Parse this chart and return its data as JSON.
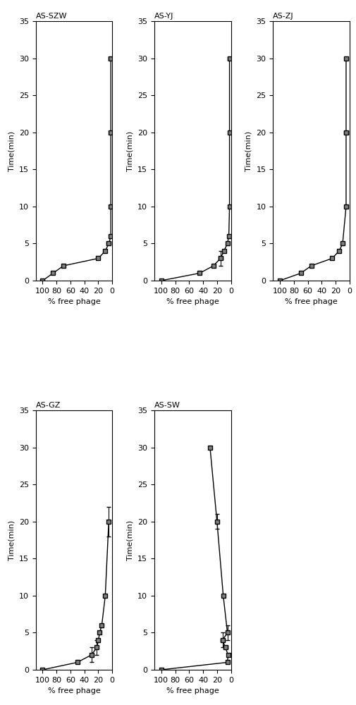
{
  "panels": [
    {
      "title": "AS-SZW",
      "x": [
        0,
        1,
        2,
        3,
        4,
        5,
        6,
        10,
        20,
        30
      ],
      "y": [
        100,
        85,
        70,
        20,
        10,
        5,
        2,
        2,
        2,
        2
      ],
      "yerr": [
        0,
        0,
        0,
        0,
        0,
        3,
        2,
        0,
        0,
        3
      ],
      "xerr": [
        0,
        0,
        0,
        0,
        0,
        0,
        0,
        0,
        0,
        0
      ],
      "xlim": [
        0,
        35
      ],
      "ylim": [
        0,
        110
      ],
      "yticks": [
        0,
        20,
        40,
        60,
        80,
        100
      ],
      "xticks": [
        0,
        5,
        10,
        15,
        20,
        25,
        30,
        35
      ],
      "smooth": true,
      "has_curve": true
    },
    {
      "title": "AS-YJ",
      "x": [
        0,
        1,
        2,
        3,
        4,
        5,
        6,
        10,
        20,
        30
      ],
      "y": [
        100,
        45,
        25,
        15,
        10,
        5,
        3,
        2,
        2,
        2
      ],
      "yerr": [
        0,
        0,
        0,
        3,
        2,
        2,
        1,
        0,
        0,
        3
      ],
      "xerr": [
        0,
        0,
        0,
        1,
        0,
        0,
        0,
        0,
        0,
        0
      ],
      "xlim": [
        0,
        35
      ],
      "ylim": [
        0,
        110
      ],
      "yticks": [
        0,
        20,
        40,
        60,
        80,
        100
      ],
      "xticks": [
        0,
        5,
        10,
        15,
        20,
        25,
        30,
        35
      ],
      "smooth": true,
      "has_curve": true
    },
    {
      "title": "AS-ZJ",
      "x": [
        0,
        1,
        2,
        3,
        4,
        5,
        10,
        20,
        30
      ],
      "y": [
        100,
        70,
        55,
        25,
        15,
        10,
        5,
        5,
        5
      ],
      "yerr": [
        0,
        0,
        0,
        0,
        0,
        0,
        0,
        3,
        2
      ],
      "xerr": [
        0,
        0,
        0,
        0,
        0,
        0,
        0,
        0,
        0
      ],
      "xlim": [
        0,
        35
      ],
      "ylim": [
        0,
        110
      ],
      "yticks": [
        0,
        20,
        40,
        60,
        80,
        100
      ],
      "xticks": [
        0,
        5,
        10,
        15,
        20,
        25,
        30,
        35
      ],
      "smooth": true,
      "has_curve": true
    },
    {
      "title": "AS-GZ",
      "x": [
        0,
        1,
        2,
        3,
        4,
        5,
        6,
        10,
        20
      ],
      "y": [
        100,
        50,
        30,
        22,
        20,
        18,
        15,
        10,
        5
      ],
      "yerr": [
        0,
        0,
        2,
        2,
        2,
        1,
        0,
        2,
        2
      ],
      "xerr": [
        0,
        0,
        1,
        1,
        0,
        0,
        0,
        0,
        2
      ],
      "xlim": [
        0,
        35
      ],
      "ylim": [
        0,
        110
      ],
      "yticks": [
        0,
        20,
        40,
        60,
        80,
        100
      ],
      "xticks": [
        0,
        5,
        10,
        15,
        20,
        25,
        30,
        35
      ],
      "smooth": true,
      "has_curve": true
    },
    {
      "title": "AS-SW",
      "x": [
        0,
        1,
        2,
        3,
        4,
        5,
        10,
        20,
        30
      ],
      "y": [
        100,
        5,
        4,
        8,
        12,
        5,
        11,
        20,
        30
      ],
      "yerr": [
        0,
        2,
        1,
        3,
        3,
        2,
        1,
        2,
        2
      ],
      "xerr": [
        0,
        0,
        0,
        0,
        1,
        1,
        0,
        1,
        0
      ],
      "xlim": [
        0,
        35
      ],
      "ylim": [
        0,
        110
      ],
      "yticks": [
        0,
        20,
        40,
        60,
        80,
        100
      ],
      "xticks": [
        0,
        5,
        10,
        15,
        20,
        25,
        30,
        35
      ],
      "smooth": false,
      "has_curve": false
    }
  ],
  "ylabel": "% free phage",
  "xlabel": "Time(min)",
  "marker": "s",
  "markersize": 4,
  "linecolor": "black",
  "markercolor": "black",
  "markerfacecolor": "gray",
  "fontsize": 8,
  "title_fontsize": 8
}
